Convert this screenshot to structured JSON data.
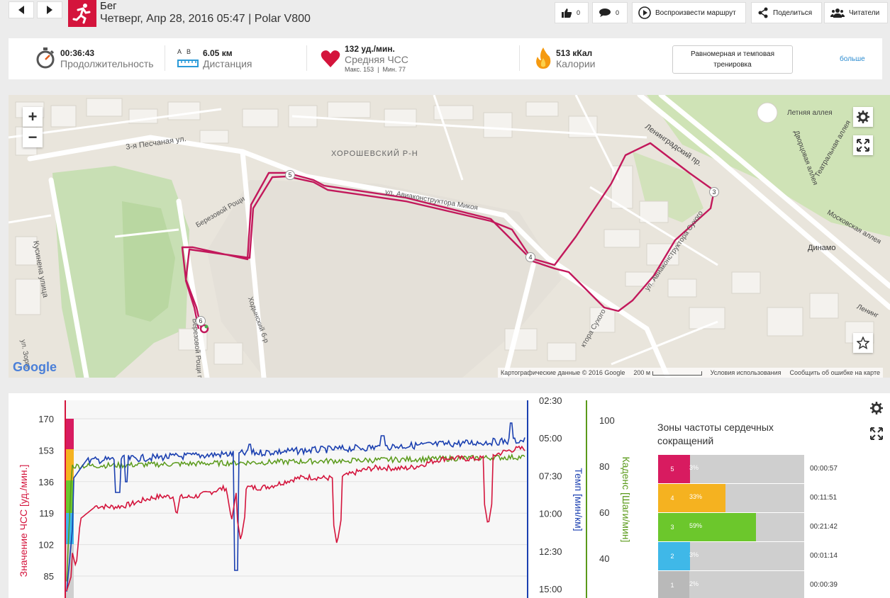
{
  "header": {
    "sport_title": "Бег",
    "sport_subtitle": "Четверг, Апр 28, 2016 05:47 | Polar V800",
    "likes_count": "0",
    "comments_count": "0",
    "replay_label": "Воспроизвести маршрут",
    "share_label": "Поделиться",
    "followers_label": "Читатели"
  },
  "stats": {
    "duration_value": "00:36:43",
    "duration_label": "Продолжительность",
    "distance_ab": "A   B",
    "distance_value": "6.05 км",
    "distance_label": "Дистанция",
    "hr_value": "132 уд./мин.",
    "hr_label": "Средняя ЧСС",
    "hr_maxmin": "Макс. 153  |  Мин. 77",
    "calories_value": "513 кКал",
    "calories_label": "Калории",
    "training_label": "Равномерная и темповая тренировка",
    "more_label": "больше"
  },
  "map": {
    "zoom_in": "+",
    "zoom_out": "−",
    "labels": {
      "pesch": "3-я Песчаная ул.",
      "khor": "ХОРОШЕВСКИЙ Р-Н",
      "aviakon": "ул. Авиаконструктора Микоя",
      "aviakon2": "ул. Авиаконструктора Сухого",
      "leningr": "Ленинградский пр.",
      "kusin": "Кусинена улица",
      "berez": "Березовой Рощи",
      "berez2": "Березовой Рощи пр.",
      "khod": "Ходынский б-р",
      "letn": "Летняя аллея",
      "dvorc": "Дворцовая аллея",
      "teatr": "Театральная аллея",
      "moskov": "Московская аллея",
      "dinamo": "Динамо",
      "lening2": "Ленинг",
      "zorge": "ул. Зорге",
      "sukh": "ктора Сухого"
    },
    "km_markers": [
      "3",
      "4",
      "5",
      "6"
    ],
    "google": "Google",
    "footer_data": "Картографические данные © 2016 Google",
    "footer_scale": "200 м",
    "footer_terms": "Условия использования",
    "footer_report": "Сообщить об ошибке на карте"
  },
  "chart_data": {
    "type": "line",
    "y_hr_label": "Значение ЧСС [уд./мин.]",
    "y_hr_ticks": [
      "170",
      "153",
      "136",
      "119",
      "102",
      "85"
    ],
    "y_pace_label": "Темп [мин/км]",
    "y_pace_ticks": [
      "02:30",
      "05:00",
      "07:30",
      "10:00",
      "12:30",
      "15:00"
    ],
    "y_cad_label": "Каденс [Шаги/мин]",
    "y_cad_ticks": [
      "100",
      "80",
      "60",
      "40"
    ],
    "series": [
      {
        "name": "ЧСС",
        "color": "#d4143c",
        "axis": "hr"
      },
      {
        "name": "Темп",
        "color": "#1a3fb0",
        "axis": "pace"
      },
      {
        "name": "Каденс",
        "color": "#5a9a1a",
        "axis": "cadence"
      }
    ]
  },
  "zones": {
    "title": "Зоны частоты сердечных сокращений",
    "rows": [
      {
        "zone": "5",
        "percent": "3%",
        "time": "00:00:57",
        "color": "#d81b60",
        "frac": 0.03
      },
      {
        "zone": "4",
        "percent": "33%",
        "time": "00:11:51",
        "color": "#f5b220",
        "frac": 0.33
      },
      {
        "zone": "3",
        "percent": "59%",
        "time": "00:21:42",
        "color": "#6cc72c",
        "frac": 0.59
      },
      {
        "zone": "2",
        "percent": "3%",
        "time": "00:01:14",
        "color": "#3fb8e8",
        "frac": 0.03
      },
      {
        "zone": "1",
        "percent": "2%",
        "time": "00:00:39",
        "color": "#b9b9b9",
        "frac": 0.02
      }
    ]
  }
}
